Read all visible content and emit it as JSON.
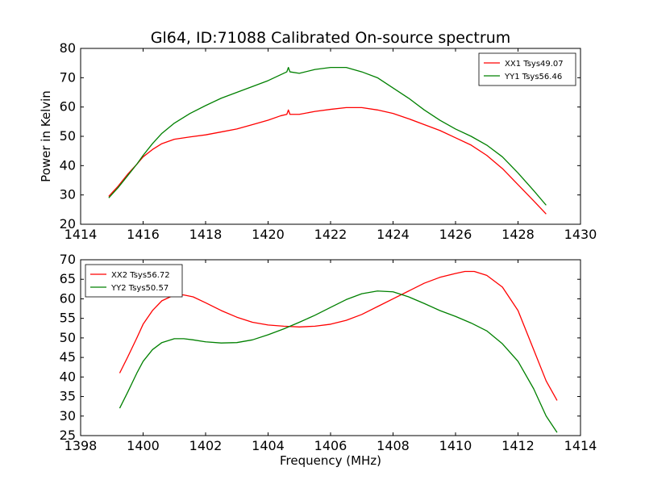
{
  "figure": {
    "title": "Gl64, ID:71088 Calibrated On-source spectrum"
  },
  "colors": {
    "red": "#ff0000",
    "green": "#008000"
  },
  "chart_data": [
    {
      "type": "line",
      "title": "Gl64, ID:71088 Calibrated On-source spectrum",
      "xlabel": "",
      "ylabel": "Power in Kelvin",
      "xlim": [
        1414,
        1430
      ],
      "ylim": [
        20,
        80
      ],
      "xticks": [
        1414,
        1416,
        1418,
        1420,
        1422,
        1424,
        1426,
        1428,
        1430
      ],
      "yticks": [
        20,
        30,
        40,
        50,
        60,
        70,
        80
      ],
      "legend": "top-right",
      "series": [
        {
          "name": "XX1 Tsys49.07",
          "color": "#ff0000",
          "x": [
            1414.9,
            1415.2,
            1415.5,
            1415.8,
            1416.0,
            1416.3,
            1416.6,
            1417.0,
            1417.5,
            1418.0,
            1418.5,
            1419.0,
            1419.5,
            1420.0,
            1420.4,
            1420.6,
            1420.65,
            1420.7,
            1421.0,
            1421.5,
            1422.0,
            1422.5,
            1423.0,
            1423.5,
            1424.0,
            1424.5,
            1425.0,
            1425.5,
            1426.0,
            1426.5,
            1427.0,
            1427.5,
            1428.0,
            1428.5,
            1428.9
          ],
          "y": [
            29.5,
            33.0,
            37.0,
            40.5,
            43.0,
            45.5,
            47.5,
            49.0,
            49.8,
            50.5,
            51.5,
            52.5,
            54.0,
            55.5,
            57.0,
            57.5,
            59.0,
            57.5,
            57.5,
            58.5,
            59.2,
            59.8,
            59.8,
            59.0,
            57.8,
            56.0,
            54.0,
            52.0,
            49.5,
            47.0,
            43.5,
            39.0,
            33.5,
            28.0,
            23.5
          ]
        },
        {
          "name": "YY1 Tsys56.46",
          "color": "#008000",
          "x": [
            1414.9,
            1415.2,
            1415.5,
            1415.8,
            1416.0,
            1416.3,
            1416.6,
            1417.0,
            1417.5,
            1418.0,
            1418.5,
            1419.0,
            1419.5,
            1420.0,
            1420.4,
            1420.6,
            1420.65,
            1420.7,
            1421.0,
            1421.5,
            1422.0,
            1422.5,
            1423.0,
            1423.5,
            1424.0,
            1424.5,
            1425.0,
            1425.5,
            1426.0,
            1426.5,
            1427.0,
            1427.5,
            1428.0,
            1428.5,
            1428.9
          ],
          "y": [
            29.0,
            32.5,
            36.5,
            40.5,
            43.5,
            47.5,
            51.0,
            54.5,
            57.8,
            60.5,
            63.0,
            65.0,
            67.0,
            69.0,
            71.0,
            72.0,
            73.5,
            72.0,
            71.5,
            72.8,
            73.5,
            73.5,
            72.0,
            70.0,
            66.5,
            63.0,
            59.0,
            55.5,
            52.5,
            50.0,
            47.0,
            43.0,
            37.5,
            31.5,
            26.5
          ]
        }
      ]
    },
    {
      "type": "line",
      "title": "",
      "xlabel": "Frequency (MHz)",
      "ylabel": "",
      "xlim": [
        1398,
        1414
      ],
      "ylim": [
        25,
        70
      ],
      "xticks": [
        1398,
        1400,
        1402,
        1404,
        1406,
        1408,
        1410,
        1412,
        1414
      ],
      "yticks": [
        25,
        30,
        35,
        40,
        45,
        50,
        55,
        60,
        65,
        70
      ],
      "legend": "top-left",
      "series": [
        {
          "name": "XX2 Tsys56.72",
          "color": "#ff0000",
          "x": [
            1399.25,
            1399.5,
            1399.8,
            1400.0,
            1400.3,
            1400.6,
            1401.0,
            1401.3,
            1401.6,
            1402.0,
            1402.5,
            1403.0,
            1403.5,
            1404.0,
            1404.5,
            1405.0,
            1405.5,
            1406.0,
            1406.5,
            1407.0,
            1407.5,
            1408.0,
            1408.5,
            1409.0,
            1409.5,
            1410.0,
            1410.3,
            1410.6,
            1411.0,
            1411.5,
            1412.0,
            1412.5,
            1412.9,
            1413.25
          ],
          "y": [
            41.0,
            45.0,
            50.0,
            53.5,
            57.0,
            59.5,
            61.0,
            61.0,
            60.5,
            59.0,
            57.0,
            55.3,
            54.0,
            53.3,
            53.0,
            52.8,
            53.0,
            53.5,
            54.5,
            56.0,
            58.0,
            60.0,
            62.0,
            64.0,
            65.5,
            66.5,
            67.0,
            67.0,
            66.0,
            63.0,
            57.0,
            47.0,
            39.0,
            34.0
          ]
        },
        {
          "name": "YY2 Tsys50.57",
          "color": "#008000",
          "x": [
            1399.25,
            1399.5,
            1399.8,
            1400.0,
            1400.3,
            1400.6,
            1401.0,
            1401.3,
            1401.6,
            1402.0,
            1402.5,
            1403.0,
            1403.5,
            1404.0,
            1404.5,
            1405.0,
            1405.5,
            1406.0,
            1406.5,
            1407.0,
            1407.5,
            1408.0,
            1408.5,
            1409.0,
            1409.5,
            1410.0,
            1410.5,
            1411.0,
            1411.5,
            1412.0,
            1412.5,
            1412.9,
            1413.25
          ],
          "y": [
            32.0,
            36.0,
            41.0,
            44.0,
            47.0,
            48.8,
            49.8,
            49.8,
            49.5,
            49.0,
            48.7,
            48.8,
            49.5,
            50.8,
            52.3,
            54.0,
            55.8,
            57.8,
            59.8,
            61.3,
            62.0,
            61.8,
            60.5,
            58.8,
            57.0,
            55.5,
            53.8,
            51.8,
            48.5,
            44.0,
            37.0,
            30.0,
            25.8
          ]
        }
      ]
    }
  ]
}
